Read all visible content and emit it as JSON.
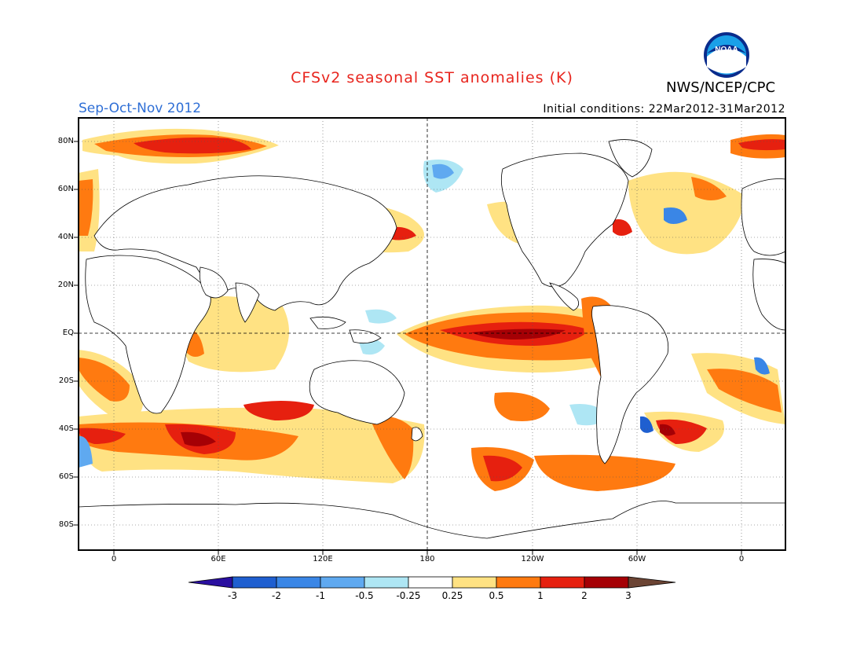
{
  "title": "CFSv2 seasonal SST anomalies (K)",
  "agency": "NWS/NCEP/CPC",
  "logo_text": "NOAA",
  "season": "Sep-Oct-Nov 2012",
  "initial_conditions": "Initial conditions: 22Mar2012-31Mar2012",
  "lat_labels": [
    "80N",
    "60N",
    "40N",
    "20N",
    "EQ",
    "20S",
    "40S",
    "60S",
    "80S"
  ],
  "lon_labels": [
    "0",
    "60E",
    "120E",
    "180",
    "120W",
    "60W",
    "0"
  ],
  "colorbar": {
    "labels": [
      "-3",
      "-2",
      "-1",
      "-0.5",
      "-0.25",
      "0.25",
      "0.5",
      "1",
      "2",
      "3"
    ],
    "colors": [
      "#2a0fa0",
      "#1f5fd0",
      "#3a86e6",
      "#5fa9f0",
      "#aee6f4",
      "#ffffff",
      "#ffe283",
      "#ff7a10",
      "#e6200f",
      "#a50005",
      "#6b4434"
    ]
  }
}
